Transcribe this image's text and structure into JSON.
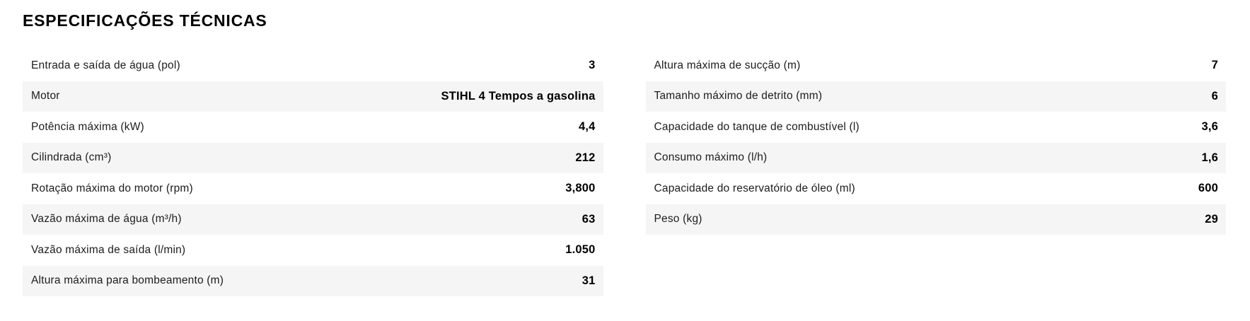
{
  "theme": {
    "page-bg": "#ffffff",
    "title-color": "#000000",
    "label-color": "#1c1c1c",
    "value-color": "#000000",
    "row-alt": "#f5f5f5"
  },
  "section": {
    "title": "ESPECIFICAÇÕES TÉCNICAS"
  },
  "specs": {
    "left": [
      {
        "label": "Entrada e saída de água (pol)",
        "value": "3"
      },
      {
        "label": "Motor",
        "value": "STIHL 4 Tempos a gasolina"
      },
      {
        "label": "Potência máxima (kW)",
        "value": "4,4"
      },
      {
        "label": "Cilindrada (cm³)",
        "value": "212"
      },
      {
        "label": "Rotação máxima do motor (rpm)",
        "value": "3,800"
      },
      {
        "label": "Vazão máxima de água (m³/h)",
        "value": "63"
      },
      {
        "label": "Vazão máxima de saída (l/min)",
        "value": "1.050"
      },
      {
        "label": "Altura máxima para bombeamento (m)",
        "value": "31"
      }
    ],
    "right": [
      {
        "label": "Altura máxima de sucção (m)",
        "value": "7"
      },
      {
        "label": "Tamanho máximo de detrito (mm)",
        "value": "6"
      },
      {
        "label": "Capacidade do tanque de combustível (l)",
        "value": "3,6"
      },
      {
        "label": "Consumo máximo (l/h)",
        "value": "1,6"
      },
      {
        "label": "Capacidade do reservatório de óleo (ml)",
        "value": "600"
      },
      {
        "label": "Peso (kg)",
        "value": "29"
      }
    ]
  }
}
